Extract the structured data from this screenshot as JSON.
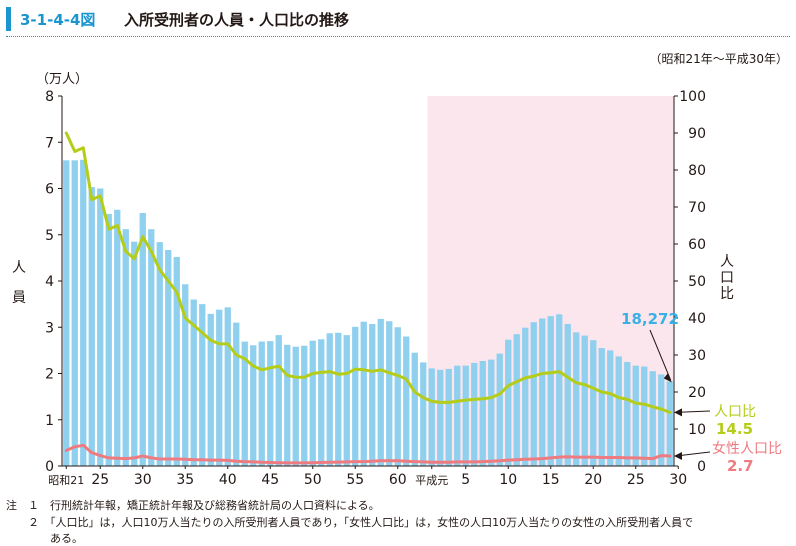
{
  "header": {
    "figure_number": "3-1-4-4図",
    "title": "入所受刑者の人員・人口比の推移"
  },
  "period": "（昭和21年～平成30年）",
  "chart_data": {
    "type": "bar",
    "y_left": {
      "unit": "（万人）",
      "label": "人員",
      "ticks": [
        "0",
        "1",
        "2",
        "3",
        "4",
        "5",
        "6",
        "7",
        "8"
      ],
      "range": [
        0,
        8
      ]
    },
    "y_right": {
      "label": "人口比",
      "ticks": [
        "0",
        "10",
        "20",
        "30",
        "40",
        "50",
        "60",
        "70",
        "80",
        "90",
        "100"
      ],
      "range": [
        0,
        100
      ]
    },
    "x_tick_labels": [
      {
        "i": 0,
        "text": "昭和21"
      },
      {
        "i": 4,
        "text": "25"
      },
      {
        "i": 9,
        "text": "30"
      },
      {
        "i": 14,
        "text": "35"
      },
      {
        "i": 19,
        "text": "40"
      },
      {
        "i": 24,
        "text": "45"
      },
      {
        "i": 29,
        "text": "50"
      },
      {
        "i": 34,
        "text": "55"
      },
      {
        "i": 39,
        "text": "60"
      },
      {
        "i": 43,
        "text": "平成元"
      },
      {
        "i": 47,
        "text": "5"
      },
      {
        "i": 52,
        "text": "10"
      },
      {
        "i": 57,
        "text": "15"
      },
      {
        "i": 62,
        "text": "20"
      },
      {
        "i": 67,
        "text": "25"
      },
      {
        "i": 72,
        "text": "30"
      }
    ],
    "shade_from_index": 43,
    "series": [
      {
        "name": "入所受刑者人員",
        "type": "bar",
        "axis": "left",
        "color": "#8fd0ef",
        "values": [
          6.61,
          6.61,
          6.62,
          6.03,
          6.0,
          5.45,
          5.54,
          5.12,
          4.85,
          5.47,
          5.12,
          4.84,
          4.67,
          4.52,
          3.93,
          3.6,
          3.5,
          3.29,
          3.38,
          3.43,
          3.1,
          2.69,
          2.61,
          2.69,
          2.7,
          2.83,
          2.62,
          2.58,
          2.6,
          2.71,
          2.74,
          2.87,
          2.88,
          2.83,
          3.01,
          3.12,
          3.07,
          3.18,
          3.13,
          3.0,
          2.8,
          2.45,
          2.24,
          2.11,
          2.08,
          2.1,
          2.17,
          2.17,
          2.23,
          2.27,
          2.3,
          2.43,
          2.73,
          2.85,
          2.99,
          3.11,
          3.19,
          3.24,
          3.28,
          3.07,
          2.89,
          2.82,
          2.72,
          2.55,
          2.5,
          2.37,
          2.25,
          2.17,
          2.15,
          2.05,
          1.98,
          1.83
        ]
      },
      {
        "name": "人口比",
        "type": "line",
        "axis": "right",
        "color": "#b5cc18",
        "values": [
          90,
          85,
          86,
          72,
          73,
          64,
          65,
          58,
          56,
          62,
          58,
          53,
          50,
          47,
          40,
          38,
          36,
          34,
          33,
          33,
          30,
          29,
          27,
          26,
          26.5,
          27,
          24.5,
          24,
          24,
          25,
          25.3,
          25.5,
          24.8,
          25,
          26.2,
          26,
          25.6,
          26,
          25.2,
          24.5,
          23.5,
          20,
          18.5,
          17.5,
          17.2,
          17.2,
          17.5,
          17.8,
          18,
          18.2,
          18.5,
          19.5,
          21.7,
          22.8,
          23.8,
          24.3,
          25,
          25.2,
          25.5,
          24,
          22.5,
          22,
          21,
          20,
          19.6,
          18.5,
          18,
          17,
          16.7,
          16,
          15.4,
          14.5
        ]
      },
      {
        "name": "女性人口比",
        "type": "line",
        "axis": "right",
        "color": "#ee7b80",
        "values": [
          4.2,
          5.2,
          5.6,
          3.6,
          2.8,
          2.2,
          2.1,
          2.0,
          2.2,
          2.7,
          2.2,
          1.9,
          1.9,
          1.9,
          1.8,
          1.7,
          1.7,
          1.6,
          1.6,
          1.5,
          1.3,
          1.2,
          1.1,
          1.0,
          0.95,
          0.9,
          0.85,
          0.85,
          0.85,
          0.9,
          0.95,
          1.0,
          1.05,
          1.1,
          1.2,
          1.2,
          1.3,
          1.4,
          1.4,
          1.4,
          1.3,
          1.2,
          1.1,
          1.0,
          1.0,
          1.0,
          1.1,
          1.1,
          1.1,
          1.2,
          1.3,
          1.4,
          1.6,
          1.7,
          1.8,
          1.9,
          2.0,
          2.2,
          2.4,
          2.5,
          2.4,
          2.4,
          2.4,
          2.3,
          2.3,
          2.3,
          2.2,
          2.2,
          2.1,
          2.0,
          2.8,
          2.7
        ]
      }
    ],
    "annotations": {
      "last_bar_value": "18,272",
      "ratio_label": "人口比",
      "ratio_value": "14.5",
      "female_label": "女性人口比",
      "female_value": "2.7"
    }
  },
  "notes": [
    "注　１　行刑統計年報，矯正統計年報及び総務省統計局の人口資料による。",
    "　　２　「人口比」は，人口10万人当たりの入所受刑者人員であり，「女性人口比」は，女性の人口10万人当たりの女性の入所受刑者人員で",
    "　　　　ある。"
  ]
}
